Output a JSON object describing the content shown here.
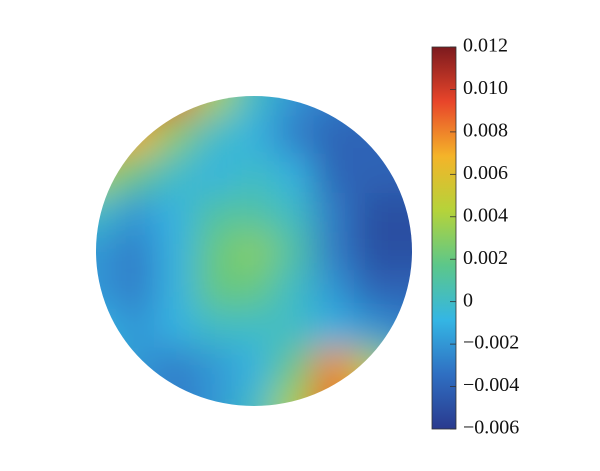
{
  "chart_data": {
    "type": "heatmap",
    "shape": "circle",
    "grid": [
      [
        0.01,
        0.011,
        0.009,
        0.004,
        0.0,
        -0.002,
        -0.003,
        -0.003,
        -0.003
      ],
      [
        0.009,
        0.007,
        0.003,
        0.0,
        -0.001,
        -0.003,
        -0.004,
        -0.004,
        -0.004
      ],
      [
        0.004,
        0.002,
        0.0,
        -0.001,
        0.0,
        -0.001,
        -0.004,
        -0.004,
        -0.004
      ],
      [
        0.0,
        -0.002,
        -0.001,
        0.001,
        0.001,
        0.0,
        -0.003,
        -0.005,
        -0.005
      ],
      [
        -0.002,
        -0.003,
        -0.001,
        0.002,
        0.003,
        0.001,
        -0.003,
        -0.005,
        -0.005
      ],
      [
        -0.002,
        -0.003,
        -0.001,
        0.002,
        0.002,
        0.0,
        -0.002,
        -0.004,
        -0.004
      ],
      [
        -0.001,
        -0.002,
        -0.001,
        0.0,
        0.0,
        0.0,
        -0.001,
        -0.002,
        -0.003
      ],
      [
        0.0,
        -0.002,
        -0.003,
        -0.002,
        -0.001,
        0.002,
        0.008,
        0.004,
        0.0
      ],
      [
        0.0,
        -0.002,
        -0.003,
        -0.002,
        0.0,
        0.004,
        0.009,
        0.006,
        0.0
      ]
    ],
    "zlim": [
      -0.006,
      0.012
    ],
    "zticks": [
      {
        "value": -0.006,
        "label": "−0.006"
      },
      {
        "value": -0.004,
        "label": "−0.004"
      },
      {
        "value": -0.002,
        "label": "−0.002"
      },
      0,
      0.002,
      0.004,
      0.006,
      0.008,
      {
        "value": 0.01,
        "label": "0.010"
      },
      0.012
    ],
    "colormap": [
      "#2a3a8e",
      "#2f6fc2",
      "#34b6e4",
      "#5cc78a",
      "#b5d33a",
      "#f4b429",
      "#e8452a",
      "#7c1a1e"
    ]
  }
}
